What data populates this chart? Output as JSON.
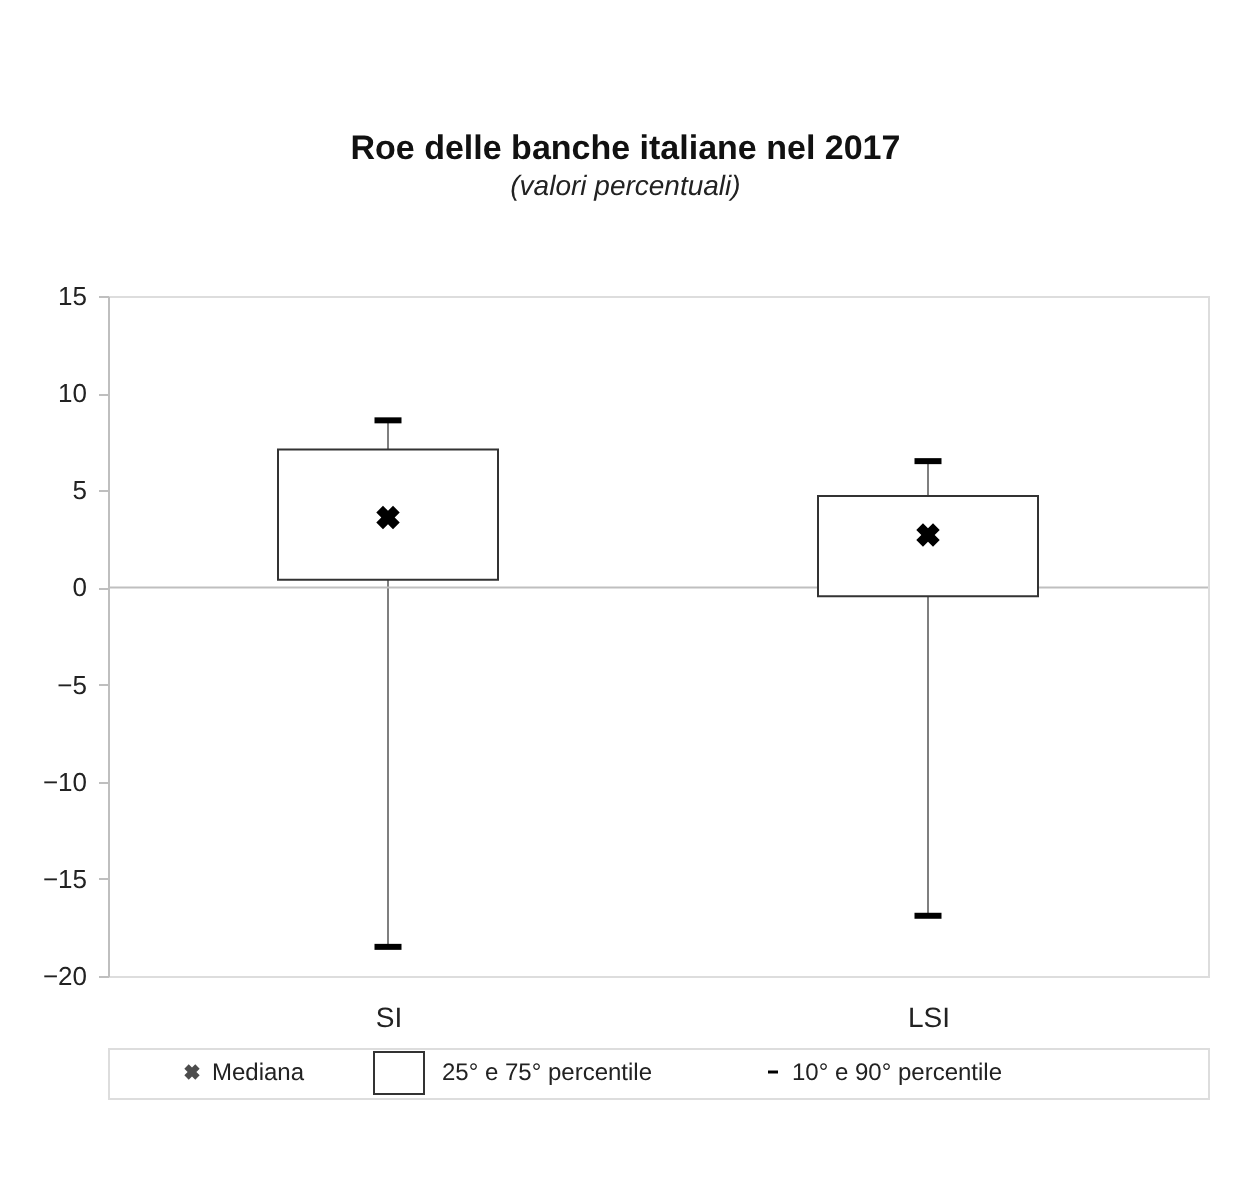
{
  "chart_data": {
    "type": "box",
    "title": "Roe delle banche italiane nel 2017",
    "subtitle": "(valori percentuali)",
    "categories": [
      "SI",
      "LSI"
    ],
    "boxes": [
      {
        "low": -18.5,
        "q1": 0.4,
        "median": 3.6,
        "q3": 7.1,
        "high": 8.6
      },
      {
        "low": -16.9,
        "q1": -0.45,
        "median": 2.7,
        "q3": 4.7,
        "high": 6.5
      }
    ],
    "ylim": [
      -20,
      15
    ],
    "yticks": [
      -20,
      -15,
      -10,
      -5,
      0,
      5,
      10,
      15
    ],
    "ref_lines": [
      {
        "axis": "y",
        "value": 0,
        "color": "#bfbfbf"
      }
    ],
    "annotations": [
      "Mediana",
      "25° e 75° percentile",
      "10° e 90° percentile"
    ],
    "grid": false
  }
}
